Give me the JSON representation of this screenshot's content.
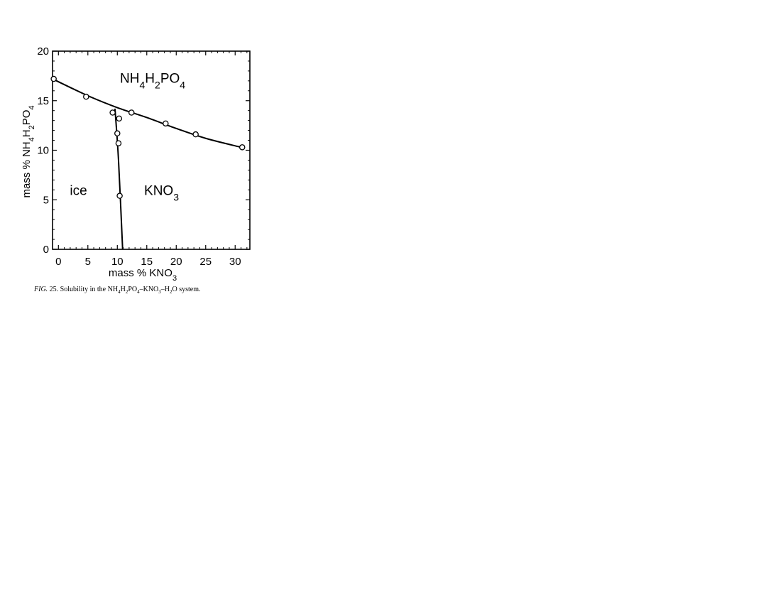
{
  "chart_data": {
    "type": "scatter",
    "title": "",
    "xlabel": "mass % KNO3",
    "ylabel": "mass % NH4H2PO4",
    "xlim": [
      -1,
      32.5
    ],
    "ylim": [
      0,
      20
    ],
    "xticks": [
      0,
      5,
      10,
      15,
      20,
      25,
      30
    ],
    "yticks": [
      0,
      5,
      10,
      15,
      20
    ],
    "grid": false,
    "series": [
      {
        "name": "NH4H2PO4",
        "marker": "circle",
        "points": [
          [
            -0.8,
            17.2
          ],
          [
            4.7,
            15.4
          ],
          [
            9.2,
            13.8
          ],
          [
            12.4,
            13.8
          ],
          [
            18.2,
            12.7
          ],
          [
            23.3,
            11.6
          ],
          [
            31.2,
            10.3
          ]
        ]
      },
      {
        "name": "KNO3",
        "marker": "circle",
        "points": [
          [
            10.3,
            13.2
          ],
          [
            10.0,
            11.7
          ],
          [
            10.2,
            10.7
          ],
          [
            10.4,
            5.4
          ]
        ]
      }
    ],
    "curves": [
      {
        "name": "NH4H2PO4",
        "points": [
          [
            -1,
            17.2
          ],
          [
            5,
            15.5
          ],
          [
            10,
            14.3
          ],
          [
            15,
            13.3
          ],
          [
            20,
            12.2
          ],
          [
            25,
            11.2
          ],
          [
            31,
            10.3
          ]
        ]
      },
      {
        "name": "KNO3",
        "points": [
          [
            9.6,
            14.2
          ],
          [
            10.2,
            9
          ],
          [
            10.9,
            0
          ]
        ]
      }
    ],
    "region_labels": [
      {
        "text": "NH4H2PO4",
        "x": 16,
        "y": 16.8
      },
      {
        "text": "ice",
        "x": 3.4,
        "y": 5.5
      },
      {
        "text": "KNO3",
        "x": 17.5,
        "y": 5.5
      }
    ],
    "caption": "FIG. 25. Solubility in the NH4H2PO4–KNO3–H2O system."
  }
}
